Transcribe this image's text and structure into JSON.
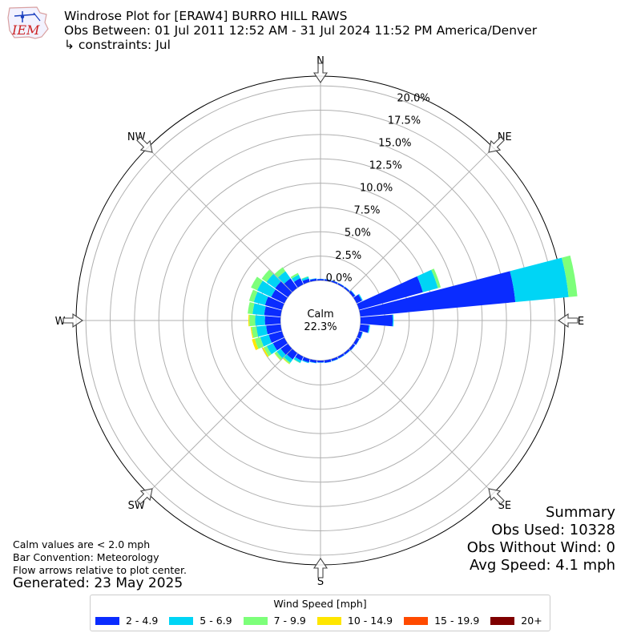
{
  "header": {
    "logo_text": "IEM",
    "title": "Windrose Plot for [ERAW4] BURRO HILL RAWS",
    "obs_between": "Obs Between: 01 Jul 2011 12:52 AM - 31 Jul 2024 11:52 PM America/Denver",
    "constraints": "↳ constraints: Jul"
  },
  "notes": {
    "calm_def": "Calm values are < 2.0 mph",
    "bar_convention": "Bar Convention: Meteorology",
    "flow_arrows": "Flow arrows relative to plot center.",
    "generated": "Generated: 23 May 2025"
  },
  "summary": {
    "heading": "Summary",
    "obs_used": "Obs Used: 10328",
    "obs_without_wind": "Obs Without Wind: 0",
    "avg_speed": "Avg Speed: 4.1 mph"
  },
  "legend": {
    "title": "Wind Speed [mph]",
    "items": [
      {
        "label": "2 - 4.9",
        "color": "#0a2cff"
      },
      {
        "label": "5 - 6.9",
        "color": "#00d5f5"
      },
      {
        "label": "7 - 9.9",
        "color": "#7dff7a"
      },
      {
        "label": "10 - 14.9",
        "color": "#ffe600"
      },
      {
        "label": "15 - 19.9",
        "color": "#ff4a00"
      },
      {
        "label": "20+",
        "color": "#7f0000"
      }
    ]
  },
  "chart_data": {
    "type": "windrose",
    "calm_label": "Calm",
    "calm_value": "22.3%",
    "calm_percent": 22.3,
    "radial_max": 21,
    "radial_ticks": [
      "0.0%",
      "2.5%",
      "5.0%",
      "7.5%",
      "10.0%",
      "12.5%",
      "15.0%",
      "17.5%",
      "20.0%"
    ],
    "radial_tick_values": [
      0,
      2.5,
      5,
      7.5,
      10,
      12.5,
      15,
      17.5,
      20
    ],
    "compass_labels": [
      {
        "label": "N",
        "angle": 0
      },
      {
        "label": "NE",
        "angle": 45
      },
      {
        "label": "E",
        "angle": 90
      },
      {
        "label": "SE",
        "angle": 135
      },
      {
        "label": "S",
        "angle": 180
      },
      {
        "label": "SW",
        "angle": 225
      },
      {
        "label": "W",
        "angle": 270
      },
      {
        "label": "NW",
        "angle": 315
      }
    ],
    "speed_bins": [
      "2 - 4.9",
      "5 - 6.9",
      "7 - 9.9",
      "10 - 14.9",
      "15 - 19.9",
      "20+"
    ],
    "directions": [
      {
        "dir": 0,
        "values": [
          0.15,
          0.02,
          0,
          0,
          0,
          0
        ]
      },
      {
        "dir": 10,
        "values": [
          0.15,
          0.02,
          0,
          0,
          0,
          0
        ]
      },
      {
        "dir": 20,
        "values": [
          0.15,
          0.02,
          0,
          0,
          0,
          0
        ]
      },
      {
        "dir": 30,
        "values": [
          0.15,
          0.02,
          0,
          0,
          0,
          0
        ]
      },
      {
        "dir": 40,
        "values": [
          0.15,
          0.03,
          0,
          0,
          0,
          0
        ]
      },
      {
        "dir": 50,
        "values": [
          0.25,
          0.05,
          0,
          0,
          0,
          0
        ]
      },
      {
        "dir": 60,
        "values": [
          0.6,
          0.1,
          0,
          0,
          0,
          0
        ]
      },
      {
        "dir": 70,
        "values": [
          6.8,
          1.6,
          0.3,
          0,
          0,
          0
        ]
      },
      {
        "dir": 80,
        "values": [
          16.0,
          5.5,
          0.9,
          0,
          0,
          0
        ]
      },
      {
        "dir": 90,
        "values": [
          3.3,
          0.1,
          0,
          0,
          0,
          0
        ]
      },
      {
        "dir": 100,
        "values": [
          0.9,
          0.1,
          0,
          0,
          0,
          0
        ]
      },
      {
        "dir": 110,
        "values": [
          0.35,
          0.05,
          0,
          0,
          0,
          0
        ]
      },
      {
        "dir": 120,
        "values": [
          0.3,
          0.03,
          0,
          0,
          0,
          0
        ]
      },
      {
        "dir": 130,
        "values": [
          0.25,
          0.03,
          0,
          0,
          0,
          0
        ]
      },
      {
        "dir": 140,
        "values": [
          0.2,
          0.03,
          0,
          0,
          0,
          0
        ]
      },
      {
        "dir": 150,
        "values": [
          0.2,
          0.03,
          0,
          0,
          0,
          0
        ]
      },
      {
        "dir": 160,
        "values": [
          0.22,
          0.03,
          0,
          0,
          0,
          0
        ]
      },
      {
        "dir": 170,
        "values": [
          0.25,
          0.03,
          0,
          0,
          0,
          0
        ]
      },
      {
        "dir": 180,
        "values": [
          0.2,
          0.03,
          0,
          0,
          0,
          0
        ]
      },
      {
        "dir": 190,
        "values": [
          0.25,
          0.05,
          0,
          0,
          0,
          0
        ]
      },
      {
        "dir": 200,
        "values": [
          0.35,
          0.08,
          0,
          0,
          0,
          0
        ]
      },
      {
        "dir": 210,
        "values": [
          0.45,
          0.25,
          0.05,
          0,
          0,
          0
        ]
      },
      {
        "dir": 220,
        "values": [
          0.8,
          0.4,
          0.15,
          0.05,
          0,
          0
        ]
      },
      {
        "dir": 230,
        "values": [
          0.9,
          0.5,
          0.25,
          0.05,
          0,
          0
        ]
      },
      {
        "dir": 240,
        "values": [
          1.3,
          0.7,
          0.35,
          0.15,
          0,
          0
        ]
      },
      {
        "dir": 250,
        "values": [
          1.4,
          0.9,
          0.6,
          0.3,
          0,
          0
        ]
      },
      {
        "dir": 260,
        "values": [
          1.5,
          1.0,
          0.5,
          0.1,
          0,
          0
        ]
      },
      {
        "dir": 270,
        "values": [
          1.6,
          1.0,
          0.6,
          0.1,
          0,
          0
        ]
      },
      {
        "dir": 280,
        "values": [
          1.7,
          1.2,
          0.5,
          0,
          0,
          0
        ]
      },
      {
        "dir": 290,
        "values": [
          1.8,
          1.2,
          0.5,
          0,
          0,
          0
        ]
      },
      {
        "dir": 300,
        "values": [
          1.5,
          1.6,
          0.7,
          0,
          0,
          0
        ]
      },
      {
        "dir": 310,
        "values": [
          1.6,
          1.1,
          0.6,
          0,
          0,
          0
        ]
      },
      {
        "dir": 320,
        "values": [
          1.2,
          0.9,
          0.5,
          0,
          0,
          0
        ]
      },
      {
        "dir": 330,
        "values": [
          0.7,
          0.4,
          0.2,
          0,
          0,
          0
        ]
      },
      {
        "dir": 340,
        "values": [
          0.35,
          0.2,
          0.05,
          0,
          0,
          0
        ]
      },
      {
        "dir": 350,
        "values": [
          0.2,
          0.05,
          0,
          0,
          0,
          0
        ]
      }
    ]
  }
}
